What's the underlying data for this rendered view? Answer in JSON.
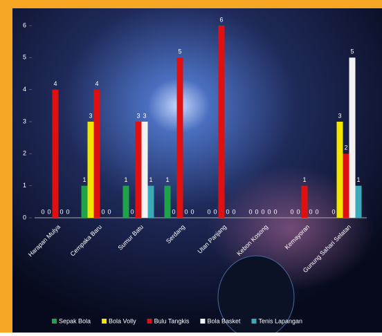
{
  "chart_data": {
    "type": "bar",
    "categories": [
      "Harapan Mulya",
      "Cempaka Baru",
      "Sumur Batu",
      "Serdang",
      "Utan Panjang",
      "Kebon Kosong",
      "Kemayoran",
      "Gunung Sahari Selatan"
    ],
    "series": [
      {
        "name": "Sepak Bola",
        "color": "#1fa34a",
        "values": [
          0,
          1,
          1,
          1,
          0,
          0,
          0,
          0
        ]
      },
      {
        "name": "Bola Volly",
        "color": "#f2e600",
        "values": [
          0,
          3,
          0,
          0,
          0,
          0,
          0,
          3
        ]
      },
      {
        "name": "Bulu Tangkis",
        "color": "#e01010",
        "values": [
          4,
          4,
          3,
          5,
          6,
          0,
          1,
          2
        ]
      },
      {
        "name": "Bola Basket",
        "color": "#f2f2f2",
        "values": [
          0,
          0,
          3,
          0,
          0,
          0,
          0,
          5
        ]
      },
      {
        "name": "Tenis Lapangan",
        "color": "#3aa9b8",
        "values": [
          0,
          0,
          1,
          0,
          0,
          0,
          0,
          1
        ]
      }
    ],
    "ylim": [
      0,
      6
    ],
    "yticks": [
      0,
      1,
      2,
      3,
      4,
      5,
      6
    ],
    "legend": "bottom"
  }
}
